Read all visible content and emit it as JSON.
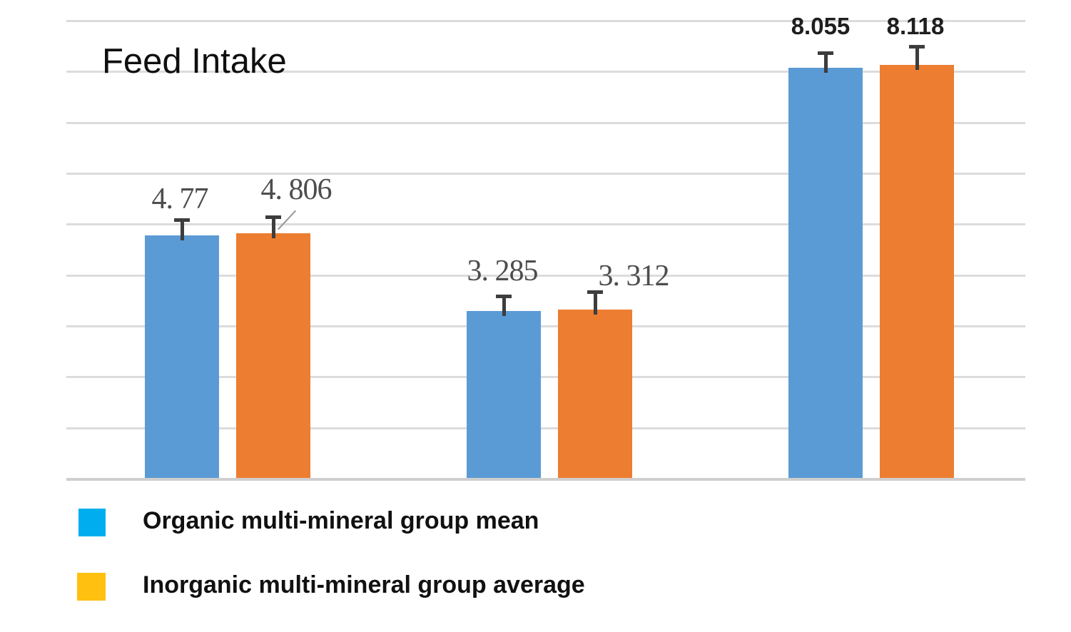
{
  "title": "Feed Intake",
  "legend": {
    "items": [
      {
        "label": "Organic multi-mineral group mean",
        "swatch_color": "#00AEEF"
      },
      {
        "label": "Inorganic multi-mineral group average",
        "swatch_color": "#FFC010"
      }
    ],
    "position": "bottom-left"
  },
  "chart_data": {
    "type": "bar",
    "title": "Feed Intake",
    "categories": [
      "",
      "",
      ""
    ],
    "series": [
      {
        "name": "Organic multi-mineral group mean",
        "color": "#5B9BD5",
        "values": [
          4.77,
          3.285,
          8.055
        ],
        "value_labels": [
          "4. 77",
          "3. 285",
          "8.055"
        ]
      },
      {
        "name": "Inorganic multi-mineral group average",
        "color": "#ED7D31",
        "values": [
          4.806,
          3.312,
          8.118
        ],
        "value_labels": [
          "4. 806",
          "3. 312",
          "8.118"
        ]
      }
    ],
    "ylim": [
      0,
      9
    ],
    "gridline_step": 1,
    "grid": "horizontal",
    "error_bars": true,
    "xlabel": "",
    "ylabel": "",
    "axis_tick_labels": "none",
    "legend_position": "bottom-left",
    "legend_swatch_colors": [
      "#00AEEF",
      "#FFC010"
    ],
    "annotation": "leader line from label 4. 806 to its error bar"
  }
}
